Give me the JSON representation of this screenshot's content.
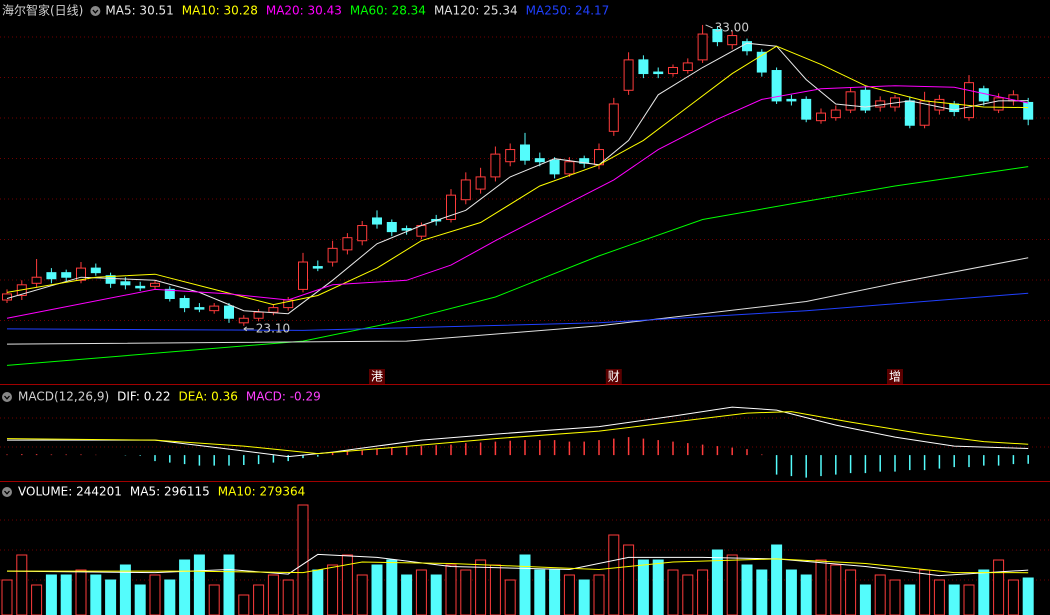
{
  "chart_data": [
    {
      "type": "candlestick",
      "title": "海尔智家(日线)",
      "title_color": "#d0d0d0",
      "up_color": "#ff3c3c",
      "down_color": "#54fcfc",
      "ylim": [
        21.22,
        33.82
      ],
      "open": [
        23.95,
        24.1,
        24.5,
        24.85,
        24.85,
        24.6,
        25.0,
        24.75,
        24.55,
        24.4,
        24.4,
        24.3,
        24.0,
        23.7,
        23.6,
        23.75,
        23.2,
        23.35,
        23.55,
        23.7,
        24.3,
        25.05,
        25.2,
        25.6,
        25.9,
        26.65,
        26.5,
        26.3,
        26.05,
        26.6,
        26.6,
        27.25,
        27.6,
        28.0,
        28.5,
        29.05,
        28.6,
        28.55,
        28.1,
        28.6,
        28.4,
        29.5,
        30.85,
        31.85,
        31.45,
        31.4,
        31.5,
        31.85,
        32.85,
        32.35,
        32.45,
        32.1,
        31.5,
        30.55,
        30.55,
        29.85,
        29.95,
        30.2,
        30.85,
        30.3,
        30.3,
        30.5,
        29.7,
        30.2,
        30.4,
        29.95,
        30.9,
        30.2,
        30.5,
        30.45
      ],
      "high": [
        24.3,
        24.6,
        25.3,
        25.0,
        24.95,
        25.2,
        25.15,
        24.85,
        24.7,
        24.55,
        24.6,
        24.4,
        24.1,
        23.85,
        23.85,
        23.85,
        23.45,
        23.65,
        23.8,
        24.05,
        25.5,
        25.25,
        25.9,
        26.15,
        26.55,
        26.9,
        26.6,
        26.4,
        26.5,
        26.75,
        27.6,
        28.15,
        28.3,
        29.0,
        29.1,
        29.45,
        28.8,
        28.65,
        28.65,
        28.7,
        29.1,
        30.6,
        32.1,
        32.0,
        31.6,
        31.7,
        31.9,
        33.0,
        32.95,
        32.8,
        32.55,
        32.2,
        31.6,
        30.7,
        30.65,
        30.25,
        30.35,
        30.95,
        31.0,
        30.65,
        30.7,
        30.65,
        30.8,
        30.7,
        30.5,
        31.35,
        31.0,
        30.75,
        30.85,
        30.6
      ],
      "low": [
        23.85,
        23.95,
        24.35,
        24.5,
        24.55,
        24.5,
        24.75,
        24.35,
        24.3,
        24.25,
        24.3,
        23.9,
        23.55,
        23.55,
        23.5,
        23.2,
        23.1,
        23.25,
        23.45,
        23.6,
        24.2,
        24.9,
        25.05,
        25.45,
        25.75,
        26.3,
        26.05,
        26.1,
        25.95,
        26.4,
        26.5,
        27.1,
        27.45,
        27.85,
        28.35,
        28.4,
        28.35,
        27.95,
        28.0,
        28.3,
        28.25,
        29.35,
        30.7,
        31.25,
        31.25,
        31.3,
        31.4,
        31.75,
        32.3,
        32.2,
        32.0,
        31.3,
        30.4,
        30.35,
        29.8,
        29.75,
        29.85,
        30.1,
        30.1,
        30.15,
        30.15,
        29.6,
        29.6,
        30.05,
        30.0,
        29.85,
        30.35,
        30.1,
        30.35,
        29.7
      ],
      "close": [
        24.15,
        24.45,
        24.7,
        24.65,
        24.7,
        25.0,
        24.85,
        24.5,
        24.45,
        24.35,
        24.5,
        24.0,
        23.7,
        23.65,
        23.75,
        23.35,
        23.35,
        23.55,
        23.7,
        23.95,
        25.2,
        25.0,
        25.65,
        26.0,
        26.4,
        26.45,
        26.2,
        26.25,
        26.4,
        26.55,
        27.4,
        27.9,
        28.0,
        28.75,
        28.9,
        28.55,
        28.5,
        28.1,
        28.5,
        28.45,
        28.9,
        30.4,
        31.85,
        31.4,
        31.4,
        31.6,
        31.75,
        32.7,
        32.45,
        32.65,
        32.15,
        31.45,
        30.5,
        30.5,
        29.9,
        30.1,
        30.2,
        30.8,
        30.2,
        30.5,
        30.6,
        29.7,
        30.5,
        30.55,
        30.15,
        31.1,
        30.5,
        30.6,
        30.7,
        29.9
      ],
      "series": [
        {
          "name": "MA5: 30.51",
          "color": "#e8e8e8",
          "x": [
            0,
            5,
            10,
            13,
            16,
            19,
            22,
            25,
            28,
            31,
            34,
            37,
            40,
            42,
            44,
            47,
            50,
            52,
            54,
            56,
            58,
            61,
            64,
            67,
            69
          ],
          "values": [
            24.0,
            24.7,
            24.6,
            24.2,
            23.6,
            23.5,
            24.6,
            25.8,
            26.4,
            26.9,
            28.0,
            28.6,
            28.4,
            29.2,
            30.7,
            31.6,
            32.4,
            32.3,
            31.2,
            30.4,
            30.3,
            30.5,
            30.2,
            30.5,
            30.51
          ]
        },
        {
          "name": "MA10: 30.28",
          "color": "#ffff00",
          "x": [
            0,
            6,
            10,
            14,
            18,
            21,
            25,
            28,
            32,
            36,
            40,
            43,
            46,
            49,
            52,
            55,
            58,
            62,
            66,
            69
          ],
          "values": [
            24.2,
            24.7,
            24.8,
            24.3,
            23.8,
            24.1,
            25.0,
            25.9,
            26.5,
            27.7,
            28.4,
            29.2,
            30.3,
            31.4,
            32.3,
            31.7,
            31.0,
            30.5,
            30.3,
            30.28
          ]
        },
        {
          "name": "MA20: 30.43",
          "color": "#ff00ff",
          "x": [
            0,
            10,
            15,
            19,
            22,
            27,
            30,
            33,
            37,
            41,
            44,
            48,
            51,
            55,
            60,
            64,
            69
          ],
          "values": [
            23.35,
            24.3,
            24.15,
            23.95,
            24.45,
            24.6,
            25.1,
            25.9,
            26.9,
            27.9,
            28.9,
            29.9,
            30.55,
            30.9,
            31.0,
            30.95,
            30.43
          ]
        },
        {
          "name": "MA60: 28.34",
          "color": "#00ff00",
          "x": [
            0,
            20,
            27,
            33,
            40,
            47,
            54,
            60,
            69
          ],
          "values": [
            21.8,
            22.6,
            23.3,
            24.05,
            25.4,
            26.6,
            27.2,
            27.7,
            28.34
          ]
        },
        {
          "name": "MA120: 25.34",
          "color": "#e0e0e0",
          "x": [
            0,
            27,
            40,
            54,
            60,
            69
          ],
          "values": [
            22.5,
            22.6,
            23.1,
            23.9,
            24.5,
            25.34
          ]
        },
        {
          "name": "MA250: 24.17",
          "color": "#2040ff",
          "x": [
            0,
            20,
            40,
            54,
            69
          ],
          "values": [
            23.0,
            22.95,
            23.2,
            23.6,
            24.17
          ]
        }
      ],
      "annotations": [
        {
          "text": "33.00",
          "index": 47,
          "value": 33.0
        },
        {
          "text": "23.10",
          "index": 16,
          "value": 23.1
        }
      ],
      "events": [
        {
          "text": "港",
          "index": 25
        },
        {
          "text": "财",
          "index": 41
        },
        {
          "text": "增",
          "index": 60
        }
      ]
    },
    {
      "type": "macd",
      "title": "MACD(12,26,9)",
      "title_color": "#d0d0d0",
      "name": "MACD: -0.29",
      "color": "#ff40ff",
      "up_color": "#ff3c3c",
      "down_color": "#54fcfc",
      "ylim": [
        -0.83,
        2.27
      ],
      "values": [
        0.02,
        0.03,
        0.03,
        0.02,
        0.02,
        0.02,
        0.01,
        0,
        -0.01,
        -0.02,
        -0.2,
        -0.25,
        -0.3,
        -0.35,
        -0.35,
        -0.35,
        -0.33,
        -0.3,
        -0.25,
        -0.2,
        -0.1,
        -0.05,
        0.08,
        0.12,
        0.15,
        0.2,
        0.25,
        0.28,
        0.3,
        0.33,
        0.35,
        0.4,
        0.42,
        0.45,
        0.48,
        0.5,
        0.5,
        0.5,
        0.45,
        0.45,
        0.5,
        0.55,
        0.6,
        0.55,
        0.5,
        0.45,
        0.4,
        0.35,
        0.3,
        0.25,
        0.2,
        0.02,
        -0.65,
        -0.7,
        -0.75,
        -0.7,
        -0.65,
        -0.6,
        -0.6,
        -0.55,
        -0.55,
        -0.5,
        -0.5,
        -0.45,
        -0.4,
        -0.4,
        -0.35,
        -0.35,
        -0.3,
        -0.29
      ],
      "series": [
        {
          "name": "DIF: 0.22",
          "color": "#ffffff",
          "x": [
            0,
            10,
            15,
            19,
            22,
            28,
            33,
            40,
            45,
            49,
            52,
            56,
            60,
            64,
            69
          ],
          "values": [
            0.5,
            0.5,
            0.2,
            -0.05,
            0.1,
            0.5,
            0.7,
            0.95,
            1.3,
            1.6,
            1.5,
            1.0,
            0.6,
            0.3,
            0.22
          ]
        },
        {
          "name": "DEA: 0.36",
          "color": "#ffff00",
          "x": [
            0,
            10,
            16,
            21,
            26,
            33,
            40,
            45,
            50,
            53,
            57,
            62,
            66,
            69
          ],
          "values": [
            0.55,
            0.5,
            0.3,
            0.05,
            0.25,
            0.55,
            0.8,
            1.1,
            1.4,
            1.45,
            1.1,
            0.7,
            0.45,
            0.36
          ]
        }
      ]
    },
    {
      "type": "volume",
      "title": "VOLUME: 244201",
      "title_color": "#ffffff",
      "up_color": "#ff3c3c",
      "down_color": "#54fcfc",
      "ylim": [
        0,
        858000
      ],
      "values": [
        231000,
        396000,
        198000,
        264000,
        264000,
        297000,
        264000,
        231000,
        330000,
        198000,
        264000,
        231000,
        363000,
        396000,
        198000,
        396000,
        132000,
        198000,
        264000,
        231000,
        726000,
        297000,
        330000,
        396000,
        264000,
        330000,
        363000,
        264000,
        297000,
        264000,
        330000,
        297000,
        363000,
        330000,
        231000,
        396000,
        297000,
        297000,
        264000,
        231000,
        264000,
        528000,
        462000,
        363000,
        363000,
        297000,
        264000,
        297000,
        429000,
        396000,
        330000,
        297000,
        462000,
        297000,
        264000,
        363000,
        330000,
        297000,
        198000,
        264000,
        231000,
        198000,
        297000,
        231000,
        198000,
        198000,
        297000,
        363000,
        231000,
        244201
      ],
      "series": [
        {
          "name": "MA5: 296115",
          "color": "#ffffff",
          "x": [
            0,
            10,
            15,
            19,
            21,
            25,
            30,
            38,
            42,
            47,
            52,
            58,
            63,
            69
          ],
          "values": [
            290000,
            280000,
            300000,
            270000,
            400000,
            380000,
            320000,
            300000,
            380000,
            380000,
            370000,
            320000,
            260000,
            296115
          ]
        },
        {
          "name": "MA10: 279364",
          "color": "#ffff00",
          "x": [
            0,
            12,
            20,
            24,
            30,
            40,
            45,
            52,
            58,
            64,
            69
          ],
          "values": [
            290000,
            290000,
            280000,
            350000,
            340000,
            300000,
            350000,
            370000,
            340000,
            280000,
            279364
          ]
        }
      ]
    }
  ]
}
